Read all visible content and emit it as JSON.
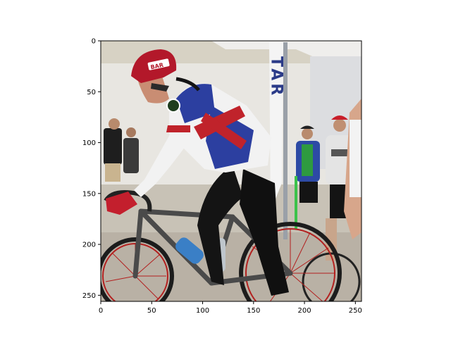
{
  "figure": {
    "description_kind": "image shown in a plotting figure with pixel axes",
    "x_axis": {
      "ticks": [
        0,
        50,
        100,
        150,
        200,
        250
      ],
      "range": [
        0,
        256
      ]
    },
    "y_axis": {
      "ticks": [
        0,
        50,
        100,
        150,
        200,
        250
      ],
      "range": [
        0,
        256
      ],
      "inverted": true
    }
  },
  "scene": {
    "banner_text": "TAR",
    "helmet_text": "BAR",
    "colors": {
      "sky": "#d9d4c6",
      "pavement": "#c9c3b8",
      "jersey_blue": "#2c3fa0",
      "jersey_red": "#c0232b",
      "helmet_red": "#b3182a",
      "skin": "#c98d73",
      "tights_black": "#141414",
      "frame_grey": "#4a4a4a",
      "rim_red": "#b3201f",
      "bottle_blue": "#3a7fc6"
    }
  }
}
